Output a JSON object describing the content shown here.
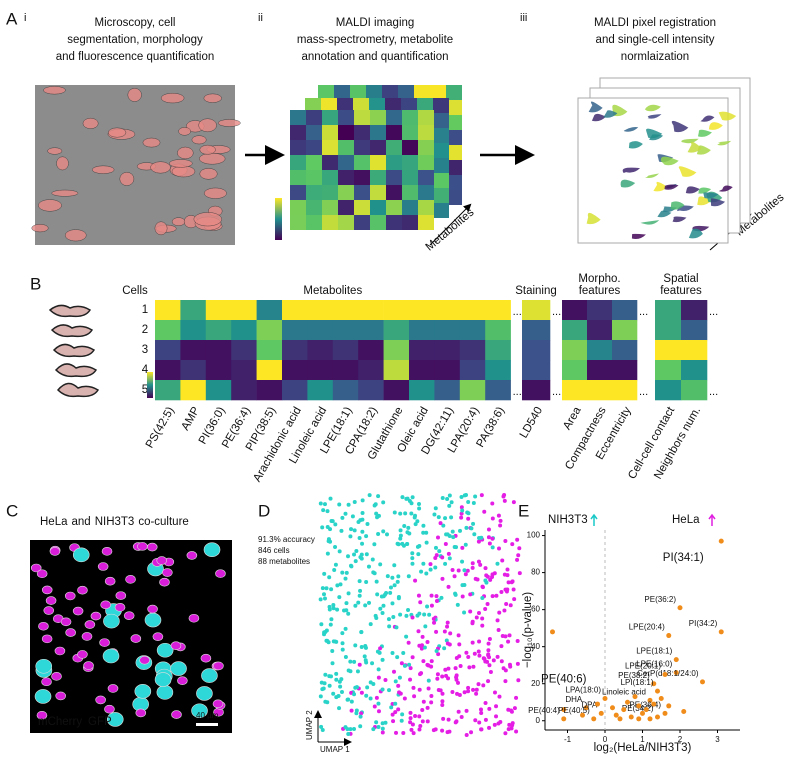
{
  "panel_a": {
    "letter": "A",
    "steps": [
      {
        "numeral": "i",
        "caption": [
          "Microscopy, cell",
          "segmentation, morphology",
          "and fluorescence quantification"
        ]
      },
      {
        "numeral": "ii",
        "caption": [
          "MALDI imaging",
          "mass-spectrometry, metabolite",
          "annotation and quantification"
        ],
        "axis_label": "Metabolites"
      },
      {
        "numeral": "iii",
        "caption": [
          "MALDI pixel registration",
          "and single-cell intensity",
          "normlaization"
        ],
        "axis_label": "Metabolites"
      }
    ]
  },
  "panel_b": {
    "letter": "B",
    "row_header": "Cells",
    "rows": [
      "1",
      "2",
      "3",
      "4",
      "5"
    ],
    "ellipsis": "...",
    "groups": [
      {
        "title": [
          "Metabolites"
        ],
        "columns": [
          "PS(42:5)",
          "AMP",
          "PI(36:0)",
          "PE(36:4)",
          "PIP(38:5)",
          "Arachidonic acid",
          "Linoleic acid",
          "LPE(18:1)",
          "CPA(18:2)",
          "Glutathione",
          "Oleic acid",
          "DG(42:11)",
          "LPA(20:4)",
          "PA(38:6)"
        ],
        "values": [
          [
            1,
            0.6,
            1,
            1,
            0.45,
            1,
            1,
            1,
            1,
            1,
            1,
            1,
            1,
            1
          ],
          [
            0.75,
            0.5,
            0.6,
            0.5,
            0.8,
            0.4,
            0.4,
            0.4,
            0.4,
            0.6,
            0.4,
            0.4,
            0.4,
            0.7
          ],
          [
            0.2,
            0.05,
            0.05,
            0.15,
            0.75,
            0.15,
            0.1,
            0.15,
            0.05,
            0.8,
            0.1,
            0.1,
            0.15,
            0.6
          ],
          [
            0.05,
            0.15,
            0.05,
            0.1,
            1,
            0.05,
            0.05,
            0.05,
            0.1,
            0.9,
            0.05,
            0.05,
            0.2,
            0.5
          ],
          [
            0.6,
            1,
            0.5,
            0.1,
            0.05,
            0.2,
            0.5,
            0.3,
            0.2,
            0.05,
            0.5,
            0.3,
            0.8,
            0.3
          ]
        ]
      },
      {
        "title": [
          "Staining"
        ],
        "columns": [
          "LD540"
        ],
        "values": [
          [
            0.95
          ],
          [
            0.3
          ],
          [
            0.25
          ],
          [
            0.25
          ],
          [
            0.05
          ]
        ]
      },
      {
        "title": [
          "Morpho.",
          "features"
        ],
        "columns": [
          "Area",
          "Compactness",
          "Eccentricity"
        ],
        "values": [
          [
            0.05,
            0.15,
            0.3
          ],
          [
            0.6,
            0.1,
            0.8
          ],
          [
            0.8,
            0.45,
            0.3
          ],
          [
            0.75,
            0.05,
            0.05
          ],
          [
            1,
            1,
            1
          ]
        ]
      },
      {
        "title": [
          "Spatial",
          "features"
        ],
        "columns": [
          "Cell-cell contact",
          "Neighbors num."
        ],
        "values": [
          [
            0.6,
            0.1
          ],
          [
            0.6,
            0.3
          ],
          [
            1,
            1
          ],
          [
            0.75,
            0.5
          ],
          [
            0.5,
            0.7
          ]
        ]
      }
    ]
  },
  "panel_c": {
    "letter": "C",
    "title": [
      "HeLa",
      "and",
      "NIH3T3",
      "co-culture"
    ],
    "channels": [
      "mCherry",
      "GFP"
    ],
    "scale_bar": "40 µm"
  },
  "panel_d": {
    "letter": "D",
    "stats": [
      "91.3% accuracy",
      "846 cells",
      "88 metabolites"
    ],
    "x_label": "UMAP 1",
    "y_label": "UMAP 2"
  },
  "panel_e": {
    "letter": "E",
    "groups": [
      "NIH3T3",
      "HeLa"
    ],
    "chart_data": {
      "type": "scatter",
      "x_label": "log₂(HeLa/NIH3T3)",
      "y_label": "−log₁₀(p-value)",
      "color": "#f08c1a",
      "xlim": [
        -1.6,
        3.6
      ],
      "ylim": [
        -5,
        103
      ],
      "xticks": [
        -1,
        0,
        1,
        2,
        3
      ],
      "yticks": [
        0,
        20,
        40,
        60,
        80,
        100
      ],
      "points": [
        {
          "label": "PI(34:1)",
          "x": 3.1,
          "y": 97
        },
        {
          "label": "PE(36:2)",
          "x": 2.0,
          "y": 61
        },
        {
          "label": "PI(34:2)",
          "x": 3.1,
          "y": 48
        },
        {
          "label": "LPE(20:4)",
          "x": 1.7,
          "y": 46
        },
        {
          "label": "LPE(18:1)",
          "x": 1.9,
          "y": 33
        },
        {
          "label": "LPE(16:0)",
          "x": 1.9,
          "y": 26
        },
        {
          "label": "CerP(d18:1/24:0)",
          "x": 2.6,
          "y": 21
        },
        {
          "label": "LPE(20:1)",
          "x": 1.6,
          "y": 25
        },
        {
          "label": "PE(38:2)",
          "x": 1.3,
          "y": 20
        },
        {
          "label": "LPI(18:1)",
          "x": 1.4,
          "y": 16
        },
        {
          "label": "Linoleic acid",
          "x": 1.2,
          "y": 11
        },
        {
          "label": "PE(36:4)",
          "x": 1.6,
          "y": 4
        },
        {
          "label": "PE(34:2)",
          "x": 1.4,
          "y": 2
        },
        {
          "label": "PE(40:6)",
          "x": -1.1,
          "y": 6
        },
        {
          "label": "DHA",
          "x": -0.5,
          "y": 7
        },
        {
          "label": "LPA(18:0)",
          "x": 0.0,
          "y": 12
        },
        {
          "label": "DPA",
          "x": -0.1,
          "y": 4
        },
        {
          "label": "PE(40:4)",
          "x": -1.1,
          "y": 1
        },
        {
          "label": "PE(40:5)",
          "x": -0.3,
          "y": 1
        },
        {
          "x": -1.4,
          "y": 48
        },
        {
          "x": 0.3,
          "y": 3
        },
        {
          "x": 0.5,
          "y": 6
        },
        {
          "x": 0.7,
          "y": 2
        },
        {
          "x": 0.9,
          "y": 8
        },
        {
          "x": 1.0,
          "y": 4
        },
        {
          "x": 0.4,
          "y": 1
        },
        {
          "x": 0.8,
          "y": 13
        },
        {
          "x": 1.1,
          "y": 6
        },
        {
          "x": 1.3,
          "y": 9
        },
        {
          "x": 0.6,
          "y": 10
        },
        {
          "x": -0.2,
          "y": 9
        },
        {
          "x": 0.2,
          "y": 7
        },
        {
          "x": 1.2,
          "y": 1
        },
        {
          "x": 1.5,
          "y": 12
        },
        {
          "x": 0.9,
          "y": 1
        },
        {
          "x": -0.6,
          "y": 3
        },
        {
          "x": 1.7,
          "y": 8
        },
        {
          "x": 2.1,
          "y": 5
        }
      ]
    }
  }
}
